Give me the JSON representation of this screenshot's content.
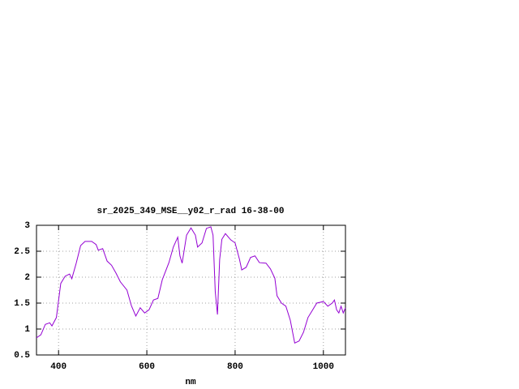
{
  "chart_data": {
    "type": "line",
    "title": "sr_2025_349_MSE__y02_r_rad 16-38-00",
    "xlabel": "nm",
    "x": [
      350,
      360,
      370,
      380,
      385,
      395,
      405,
      415,
      425,
      430,
      440,
      450,
      460,
      475,
      485,
      490,
      500,
      510,
      520,
      530,
      540,
      555,
      565,
      575,
      585,
      595,
      605,
      615,
      625,
      635,
      650,
      660,
      670,
      675,
      680,
      690,
      700,
      710,
      715,
      725,
      735,
      745,
      750,
      755,
      760,
      765,
      770,
      778,
      790,
      800,
      810,
      815,
      825,
      835,
      845,
      855,
      870,
      880,
      890,
      895,
      905,
      915,
      925,
      935,
      945,
      955,
      965,
      975,
      985,
      1000,
      1010,
      1020,
      1025,
      1030,
      1035,
      1040,
      1045,
      1050
    ],
    "series": [
      {
        "color": "#9400d3",
        "values": [
          0.83,
          0.89,
          1.09,
          1.12,
          1.06,
          1.22,
          1.88,
          2.02,
          2.06,
          1.97,
          2.27,
          2.61,
          2.69,
          2.69,
          2.63,
          2.52,
          2.55,
          2.31,
          2.23,
          2.08,
          1.91,
          1.75,
          1.45,
          1.25,
          1.41,
          1.31,
          1.37,
          1.56,
          1.59,
          1.95,
          2.28,
          2.58,
          2.77,
          2.41,
          2.27,
          2.81,
          2.95,
          2.81,
          2.58,
          2.66,
          2.94,
          2.97,
          2.81,
          1.72,
          1.28,
          2.34,
          2.73,
          2.84,
          2.72,
          2.66,
          2.34,
          2.14,
          2.19,
          2.38,
          2.41,
          2.28,
          2.27,
          2.16,
          1.98,
          1.64,
          1.5,
          1.44,
          1.17,
          0.73,
          0.77,
          0.94,
          1.22,
          1.36,
          1.5,
          1.53,
          1.44,
          1.5,
          1.56,
          1.37,
          1.31,
          1.44,
          1.31,
          1.41
        ]
      }
    ],
    "xlim": [
      350,
      1050
    ],
    "xticks": [
      400,
      600,
      800,
      1000
    ],
    "ylim": [
      0.5,
      3
    ],
    "yticks": [
      0.5,
      1,
      1.5,
      2,
      2.5,
      3
    ],
    "grid": true
  }
}
